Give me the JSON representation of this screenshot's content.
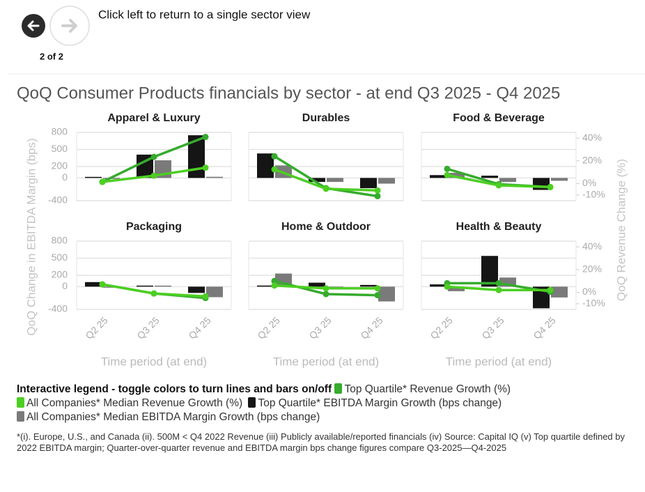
{
  "navigation": {
    "instruction": "Click left to return to a single sector view",
    "page": "2 of 2"
  },
  "chart_data": {
    "type": "bar",
    "title": "QoQ Consumer Products financials by sector - at end Q3 2025 - Q4 2025",
    "xlabel": "Time period (at end)",
    "ylabel": "QoQ Change in EBITDA Margin (bps)",
    "y2label": "QoQ Revenue Change (%)",
    "categories": [
      "Q2 25",
      "Q3 25",
      "Q4 25"
    ],
    "ylim": [
      -400,
      800
    ],
    "yticks": [
      -400,
      0,
      200,
      500,
      800
    ],
    "y2lim": [
      -15,
      45
    ],
    "y2ticks": [
      {
        "value": -10,
        "label": "-10%"
      },
      {
        "value": 0,
        "label": "0%"
      },
      {
        "value": 20,
        "label": "20%"
      },
      {
        "value": 40,
        "label": "40%"
      }
    ],
    "grid": true,
    "legend_title": "Interactive legend - toggle colors to turn lines and bars on/off",
    "series": [
      {
        "name": "Top Quartile* Revenue Growth (%)",
        "color": "#36ab2e",
        "type": "line",
        "axis": "y2"
      },
      {
        "name": "All Companies* Median Revenue Growth (%)",
        "color": "#4ccf22",
        "type": "line",
        "axis": "y2"
      },
      {
        "name": "Top Quartile* EBITDA Margin Growth (bps change)",
        "color": "#151515",
        "type": "bar"
      },
      {
        "name": "All Companies* Median EBITDA Margin Growth (bps change)",
        "color": "#7a7a7a",
        "type": "bar"
      }
    ],
    "facets": [
      {
        "title": "Apparel & Luxury",
        "values": [
          [
            1.5,
            23.5,
            41
          ],
          [
            1.5,
            7,
            14
          ],
          [
            10,
            410,
            750
          ],
          [
            -10,
            310,
            20
          ]
        ]
      },
      {
        "title": "Durables",
        "values": [
          [
            24,
            -4,
            -11
          ],
          [
            12.5,
            -4.5,
            -6
          ],
          [
            430,
            -70,
            -180
          ],
          [
            220,
            -70,
            -100
          ]
        ]
      },
      {
        "title": "Food & Beverage",
        "values": [
          [
            13,
            -0.5,
            -3
          ],
          [
            7.5,
            -1.5,
            -3
          ],
          [
            50,
            40,
            -210
          ],
          [
            90,
            -70,
            -50
          ]
        ]
      },
      {
        "title": "Packaging",
        "values": [
          [
            7,
            -1,
            -5
          ],
          [
            7,
            -1,
            -3.5
          ],
          [
            80,
            5,
            -110
          ],
          [
            -10,
            5,
            -185
          ]
        ]
      },
      {
        "title": "Home & Outdoor",
        "values": [
          [
            10,
            -1.5,
            -2.5
          ],
          [
            6,
            3.5,
            3.5
          ],
          [
            20,
            70,
            30
          ],
          [
            230,
            -50,
            -260
          ]
        ]
      },
      {
        "title": "Health & Beauty",
        "values": [
          [
            8,
            8,
            0.5
          ],
          [
            5,
            2,
            2
          ],
          [
            40,
            540,
            -380
          ],
          [
            -80,
            160,
            -190
          ]
        ]
      }
    ],
    "footnote": "*(i). Europe, U.S., and Canada (ii). 500M < Q4 2022 Revenue (iii) Publicly available/reported financials (iv) Source: Capital IQ (v) Top quartile defined by 2022 EBITDA margin; Quarter-over-quarter revenue and EBITDA margin bps change figures compare Q3-2025—Q4-2025"
  }
}
